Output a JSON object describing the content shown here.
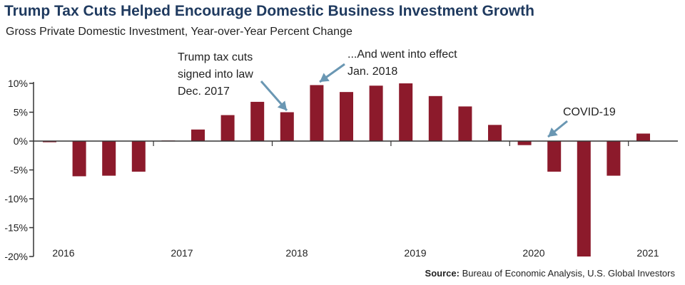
{
  "colors": {
    "bar": "#8c1a2b",
    "arrow": "#6a97b3",
    "title": "#1f3a5f",
    "axis": "#333333"
  },
  "chart_data": {
    "type": "bar",
    "title": "Trump Tax Cuts Helped Encourage Domestic Business Investment Growth",
    "subtitle": "Gross Private Domestic Investment, Year-over-Year Percent Change",
    "source_label": "Source:",
    "source_text": "Bureau of Economic Analysis, U.S. Global Investors",
    "ylim": [
      -20,
      10
    ],
    "yticks": [
      10,
      5,
      0,
      -5,
      -10,
      -15,
      -20
    ],
    "ytick_labels": [
      "10%",
      "5%",
      "0%",
      "-5%",
      "-10%",
      "-15%",
      "-20%"
    ],
    "categories": [
      "2016 Q1",
      "2016 Q2",
      "2016 Q3",
      "2016 Q4",
      "2017 Q1",
      "2017 Q2",
      "2017 Q3",
      "2017 Q4",
      "2018 Q1",
      "2018 Q2",
      "2018 Q3",
      "2018 Q4",
      "2019 Q1",
      "2019 Q2",
      "2019 Q3",
      "2019 Q4",
      "2020 Q1",
      "2020 Q2",
      "2020 Q3",
      "2020 Q4",
      "2021 Q1"
    ],
    "values": [
      -0.2,
      -6.1,
      -6.0,
      -5.3,
      0.1,
      2.0,
      4.5,
      6.8,
      5.0,
      9.7,
      8.5,
      9.6,
      10.0,
      7.8,
      6.0,
      2.8,
      -0.7,
      -5.3,
      -20.0,
      -6.0,
      1.3
    ],
    "year_labels": [
      "2016",
      "2017",
      "2018",
      "2019",
      "2020",
      "2021"
    ],
    "annotations": [
      {
        "lines": [
          "Trump tax cuts",
          "signed into law",
          "Dec. 2017"
        ]
      },
      {
        "lines": [
          "...And went into effect",
          "Jan. 2018"
        ]
      },
      {
        "lines": [
          "COVID-19"
        ]
      }
    ]
  }
}
